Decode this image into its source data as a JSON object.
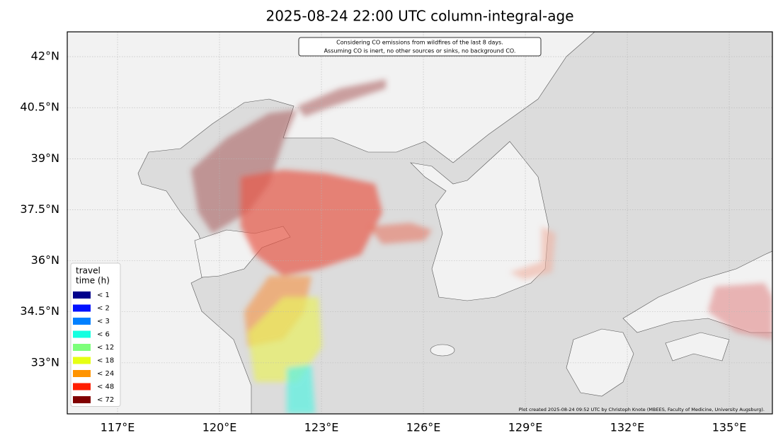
{
  "map": {
    "title": "2025-08-24 22:00 UTC column-integral-age",
    "note": [
      "Considering CO emissions from wildfires of the last 8 days.",
      "Assuming CO is inert, no other sources or sinks, no background CO."
    ],
    "credit": "Plot created 2025-08-24 09:52 UTC by Christoph Knote (MBEES, Faculty of Medicine, University Augsburg).",
    "xlim": [
      115.52,
      136.27
    ],
    "ylim": [
      31.5,
      42.73
    ],
    "xticks": [
      {
        "value": 117,
        "label": "117°E"
      },
      {
        "value": 120,
        "label": "120°E"
      },
      {
        "value": 123,
        "label": "123°E"
      },
      {
        "value": 126,
        "label": "126°E"
      },
      {
        "value": 129,
        "label": "129°E"
      },
      {
        "value": 132,
        "label": "132°E"
      },
      {
        "value": 135,
        "label": "135°E"
      }
    ],
    "yticks": [
      {
        "value": 33,
        "label": "33°N"
      },
      {
        "value": 34.5,
        "label": "34.5°N"
      },
      {
        "value": 36,
        "label": "36°N"
      },
      {
        "value": 37.5,
        "label": "37.5°N"
      },
      {
        "value": 39,
        "label": "39°N"
      },
      {
        "value": 40.5,
        "label": "40.5°N"
      },
      {
        "value": 42,
        "label": "42°N"
      }
    ],
    "grid": true,
    "legend": {
      "title": [
        "travel",
        "time (h)"
      ],
      "items": [
        {
          "label": "<  1",
          "color": "#00008b"
        },
        {
          "label": "<  2",
          "color": "#0010ff"
        },
        {
          "label": "<  3",
          "color": "#0080ff"
        },
        {
          "label": "<  6",
          "color": "#14ffe0"
        },
        {
          "label": "< 12",
          "color": "#7dff7a"
        },
        {
          "label": "< 18",
          "color": "#e6ff14"
        },
        {
          "label": "< 24",
          "color": "#ff9400"
        },
        {
          "label": "< 48",
          "color": "#ff1e00"
        },
        {
          "label": "< 72",
          "color": "#800000"
        }
      ]
    }
  }
}
